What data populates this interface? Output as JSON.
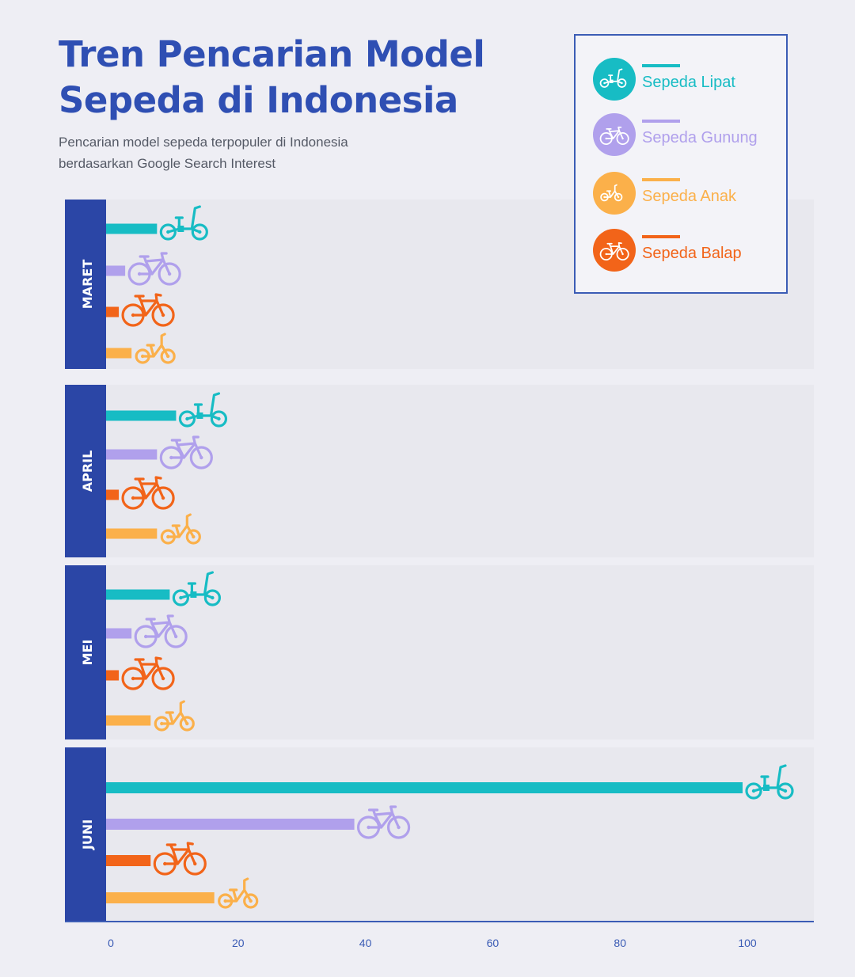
{
  "header": {
    "title": "Tren Pencarian Model Sepeda di Indonesia",
    "subtitle": "Pencarian model sepeda terpopuler di Indonesia berdasarkan Google Search Interest"
  },
  "legend": {
    "items": [
      {
        "label": "Sepeda Lipat",
        "color": "#17bcc4",
        "icon": "folding-bike-icon"
      },
      {
        "label": "Sepeda Gunung",
        "color": "#b0a0ec",
        "icon": "mountain-bike-icon"
      },
      {
        "label": "Sepeda Anak",
        "color": "#fbb04a",
        "icon": "kids-bike-icon"
      },
      {
        "label": "Sepeda Balap",
        "color": "#f26419",
        "icon": "road-bike-icon"
      }
    ]
  },
  "colors": {
    "accent": "#2f4fb3",
    "month_band": "#2b46a6",
    "axis": "#3b5cb5"
  },
  "chart_data": {
    "type": "bar",
    "orientation": "horizontal",
    "categories": [
      "MARET",
      "APRIL",
      "MEI",
      "JUNI"
    ],
    "series": [
      {
        "name": "Sepeda Lipat",
        "color": "#17bcc4",
        "icon": "folding-bike-icon",
        "values": [
          8,
          11,
          10,
          100
        ]
      },
      {
        "name": "Sepeda Gunung",
        "color": "#b0a0ec",
        "icon": "mountain-bike-icon",
        "values": [
          3,
          8,
          4,
          39
        ]
      },
      {
        "name": "Sepeda Balap",
        "color": "#f26419",
        "icon": "road-bike-icon",
        "values": [
          2,
          2,
          2,
          7
        ]
      },
      {
        "name": "Sepeda Anak",
        "color": "#fbb04a",
        "icon": "kids-bike-icon",
        "values": [
          4,
          8,
          7,
          17
        ]
      }
    ],
    "x_ticks": [
      0,
      20,
      40,
      60,
      80,
      100
    ],
    "xlim": [
      0,
      112
    ],
    "xlabel": "",
    "ylabel": "",
    "grid": false,
    "legend_position": "top-right"
  }
}
